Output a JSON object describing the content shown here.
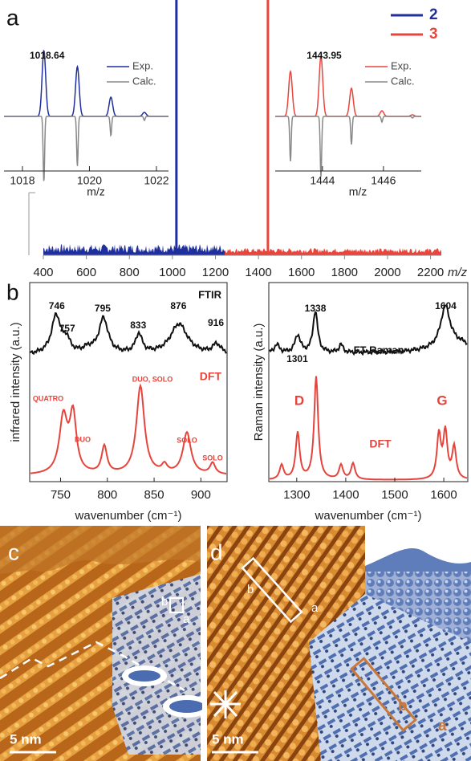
{
  "panel_a": {
    "label": "a",
    "x_label": "m/z",
    "xlim": [
      400,
      2250
    ],
    "xticks": [
      400,
      600,
      800,
      1000,
      1200,
      1400,
      1600,
      1800,
      2000,
      2200
    ],
    "series": [
      {
        "name": "2",
        "color": "#1f2f9e",
        "peak": 1018.64
      },
      {
        "name": "3",
        "color": "#e8453c",
        "peak": 1443.95
      }
    ],
    "insets": [
      {
        "xlim": [
          1017.45,
          1022.36
        ],
        "xticks": [
          1018,
          1020,
          1022
        ],
        "x_label": "m/z",
        "legend": [
          "Exp.",
          "Calc."
        ]
      },
      {
        "xlim": [
          1442.45,
          1447.24
        ],
        "xticks": [
          1444,
          1446
        ],
        "x_label": "m/z",
        "legend": [
          "Exp.",
          "Calc."
        ]
      }
    ]
  },
  "panel_b": {
    "label": "b",
    "ir": {
      "y_label": "infrared intensity (a.u.)",
      "x_label": "wavenumber (cm⁻¹)",
      "xlim": [
        717,
        928
      ],
      "xticks": [
        750,
        800,
        850,
        900
      ],
      "exp_label": "FTIR",
      "peaks": [
        746,
        757,
        795,
        833,
        876,
        916
      ],
      "dft_label": "DFT",
      "modes": [
        "QUATRO",
        "DUO",
        "DUO, SOLO",
        "SOLO",
        "SOLO"
      ]
    },
    "raman": {
      "y_label": "Raman intensity (a.u.)",
      "x_label": "wavenumber (cm⁻¹)",
      "xlim": [
        1243,
        1649
      ],
      "xticks": [
        1300,
        1400,
        1500,
        1600
      ],
      "exp_label": "FT-Raman",
      "peaks": [
        1301,
        1338,
        1604
      ],
      "dft_label": "DFT",
      "bands": [
        "D",
        "G"
      ]
    }
  },
  "panel_c": {
    "label": "c",
    "scale_bar": "5 nm",
    "marks": [
      "b",
      "a"
    ]
  },
  "panel_d": {
    "label": "d",
    "scale_bar": "5 nm",
    "marks": [
      "b",
      "a"
    ],
    "model_marks": [
      "b",
      "a"
    ]
  }
}
